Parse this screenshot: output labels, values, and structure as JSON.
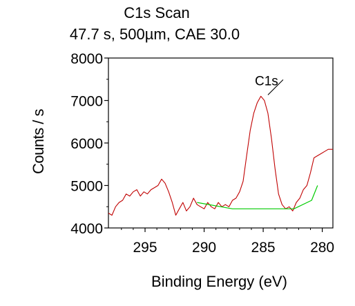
{
  "header": {
    "title": "C1s Scan",
    "subtitle": "47.7 s,  500µm,  CAE 30.0"
  },
  "chart_data": {
    "type": "line",
    "title": "C1s Scan",
    "subtitle": "47.7 s,  500µm,  CAE 30.0",
    "xlabel": "Binding Energy (eV)",
    "ylabel": "Counts / s",
    "xlim": [
      298.1,
      279.1
    ],
    "ylim": [
      4000,
      8000
    ],
    "x_reversed": true,
    "xticks": [
      295,
      290,
      285,
      280
    ],
    "yticks": [
      4000,
      5000,
      6000,
      7000,
      8000
    ],
    "grid": false,
    "annotations": [
      {
        "text": "C1s",
        "x": 284.6,
        "y": 7100
      }
    ],
    "colors": {
      "spectrum": "#c00000",
      "background": "#00cc00",
      "frame": "#000000"
    },
    "series": [
      {
        "name": "",
        "x": [
          298.1,
          297.8,
          297.5,
          297.2,
          296.9,
          296.6,
          296.3,
          296.0,
          295.7,
          295.4,
          295.1,
          294.8,
          294.5,
          294.2,
          293.9,
          293.6,
          293.3,
          293.0,
          292.7,
          292.4,
          292.1,
          291.8,
          291.5,
          291.2,
          290.9,
          290.6,
          290.3,
          290.0,
          289.7,
          289.4,
          289.1,
          288.8,
          288.5,
          288.2,
          287.9,
          287.6,
          287.3,
          287.0,
          286.7,
          286.4,
          286.1,
          285.8,
          285.5,
          285.2,
          284.9,
          284.6,
          284.3,
          284.0,
          283.7,
          283.4,
          283.1,
          282.8,
          282.5,
          282.2,
          281.9,
          281.6,
          281.3,
          281.0,
          280.7,
          280.4,
          280.1,
          279.8,
          279.5,
          279.1
        ],
        "values": [
          4350,
          4300,
          4500,
          4600,
          4650,
          4800,
          4750,
          4850,
          4900,
          4750,
          4850,
          4800,
          4900,
          4950,
          5000,
          5150,
          5050,
          4850,
          4600,
          4300,
          4450,
          4600,
          4400,
          4500,
          4700,
          4550,
          4500,
          4450,
          4600,
          4500,
          4450,
          4600,
          4500,
          4550,
          4500,
          4650,
          4700,
          4850,
          5100,
          5700,
          6300,
          6700,
          6950,
          7100,
          7000,
          6700,
          6100,
          5400,
          4800,
          4550,
          4450,
          4500,
          4400,
          4600,
          4700,
          4900,
          5000,
          5300,
          5650,
          5700,
          5750,
          5800,
          5850,
          5850
        ]
      },
      {
        "name": "",
        "x": [
          290.6,
          287.6,
          282.4,
          280.9,
          280.4
        ],
        "values": [
          4600,
          4450,
          4450,
          4650,
          5000
        ]
      }
    ]
  }
}
